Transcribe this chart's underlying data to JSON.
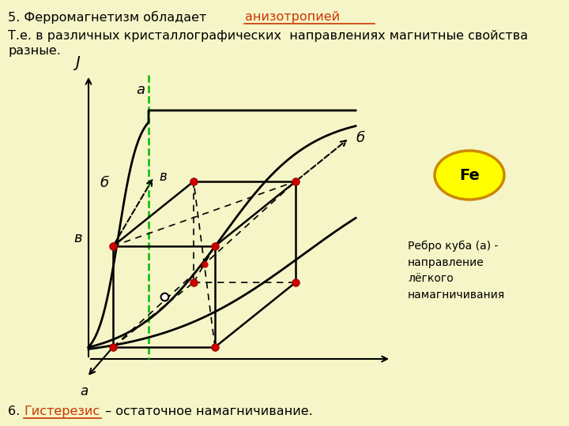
{
  "bg_color": "#f5f5c8",
  "black": "#000000",
  "orange_red": "#cc3300",
  "green": "#00bb00",
  "red_dot": "#cc0000",
  "yellow": "#ffff00",
  "orange_ellipse_edge": "#cc8800",
  "title_plain": "5. Ферромагнетизм обладает ",
  "title_underline": "анизотропией",
  "subtitle1": "Т.е. в различных кристаллографических  направлениях магнитные свойства",
  "subtitle2": "разные.",
  "bottom_plain_1": "6. ",
  "bottom_underline": "Гистерезис",
  "bottom_plain_2": " – остаточное намагничивание.",
  "fe_text": "Fe",
  "annotation": "Ребро куба (а) -\nнаправление\nлёгкого\nнамагничивания",
  "label_a": "а",
  "label_b": "б",
  "label_v": "в",
  "label_J": "J"
}
